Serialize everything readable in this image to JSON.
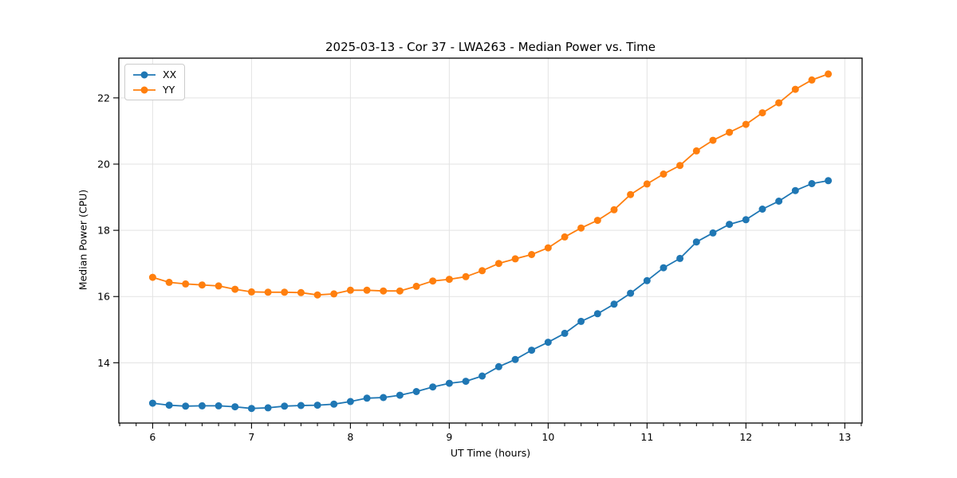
{
  "chart_data": {
    "type": "line",
    "title": "2025-03-13 - Cor 37 - LWA263 - Median Power vs. Time",
    "xlabel": "UT Time (hours)",
    "ylabel": "Median Power (CPU)",
    "xlim": [
      5.658,
      13.175
    ],
    "ylim": [
      12.18,
      23.2
    ],
    "x_major_ticks": [
      6,
      7,
      8,
      9,
      10,
      11,
      12,
      13
    ],
    "y_major_ticks": [
      14,
      16,
      18,
      20,
      22
    ],
    "x_minor_step_hours": 0.1667,
    "grid": true,
    "grid_color": "#e3e3e3",
    "legend_position": "upper-left",
    "x": [
      6.0,
      6.167,
      6.333,
      6.5,
      6.667,
      6.833,
      7.0,
      7.167,
      7.333,
      7.5,
      7.667,
      7.833,
      8.0,
      8.167,
      8.333,
      8.5,
      8.667,
      8.833,
      9.0,
      9.167,
      9.333,
      9.5,
      9.667,
      9.833,
      10.0,
      10.167,
      10.333,
      10.5,
      10.667,
      10.833,
      11.0,
      11.167,
      11.333,
      11.5,
      11.667,
      11.833,
      12.0,
      12.167,
      12.333,
      12.5,
      12.667,
      12.833
    ],
    "series": [
      {
        "name": "XX",
        "color": "#1f77b4",
        "values": [
          12.78,
          12.72,
          12.69,
          12.7,
          12.7,
          12.67,
          12.62,
          12.64,
          12.69,
          12.71,
          12.72,
          12.75,
          12.83,
          12.93,
          12.95,
          13.02,
          13.13,
          13.27,
          13.38,
          13.44,
          13.6,
          13.88,
          14.1,
          14.38,
          14.62,
          14.89,
          15.25,
          15.48,
          15.77,
          16.1,
          16.48,
          16.87,
          17.15,
          17.65,
          17.92,
          18.18,
          18.32,
          18.64,
          18.88,
          19.2,
          19.41,
          19.5
        ]
      },
      {
        "name": "YY",
        "color": "#ff7f0e",
        "values": [
          16.58,
          16.43,
          16.38,
          16.35,
          16.32,
          16.22,
          16.14,
          16.13,
          16.13,
          16.12,
          16.05,
          16.08,
          16.19,
          16.19,
          16.17,
          16.17,
          16.31,
          16.47,
          16.52,
          16.6,
          16.78,
          17.0,
          17.14,
          17.27,
          17.47,
          17.8,
          18.07,
          18.3,
          18.62,
          19.08,
          19.4,
          19.7,
          19.96,
          20.4,
          20.72,
          20.96,
          21.2,
          21.55,
          21.85,
          22.26,
          22.54,
          22.72
        ]
      }
    ]
  }
}
